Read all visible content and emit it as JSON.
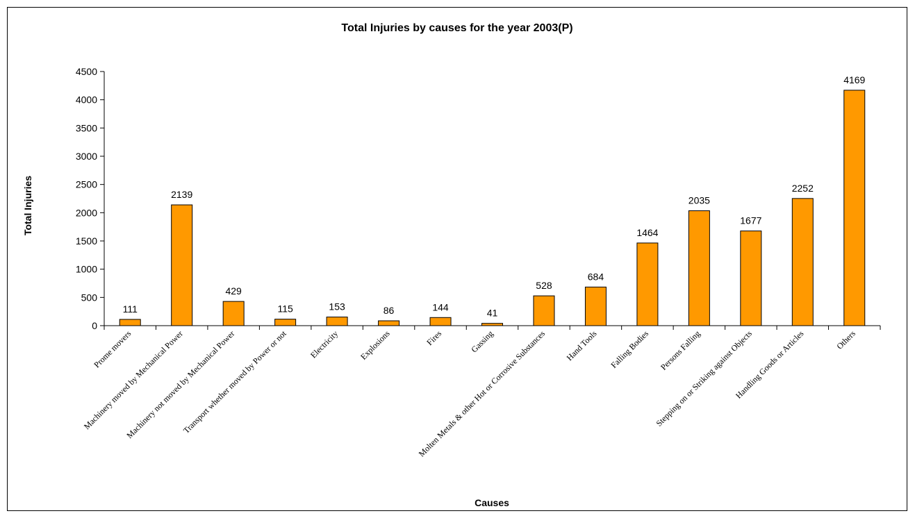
{
  "chart_data": {
    "type": "bar",
    "title": "Total Injuries by causes for the year 2003(P)",
    "xlabel": "Causes",
    "ylabel": "Total Injuries",
    "ylim": [
      0,
      4500
    ],
    "yticks": [
      0,
      500,
      1000,
      1500,
      2000,
      2500,
      3000,
      3500,
      4000,
      4500
    ],
    "grid": false,
    "legend": "none",
    "bar_color": "#FF9900",
    "bar_border_color": "#000000",
    "categories": [
      "Prome movers",
      "Machinery moved by Mechanical Power",
      "Machinery not moved by Mechanical Power",
      "Transport whether moved by Power or not",
      "Electricity",
      "Explosions",
      "Fires",
      "Gassing",
      "Molten Metals & other Hot or Corrosive Substances",
      "Hand Tools",
      "Falling Bodies",
      "Persons Falling",
      "Stepping on or Striking against Objects",
      "Handling Goods or Articles",
      "Others"
    ],
    "values": [
      111,
      2139,
      429,
      115,
      153,
      86,
      144,
      41,
      528,
      684,
      1464,
      2035,
      1677,
      2252,
      4169
    ]
  }
}
